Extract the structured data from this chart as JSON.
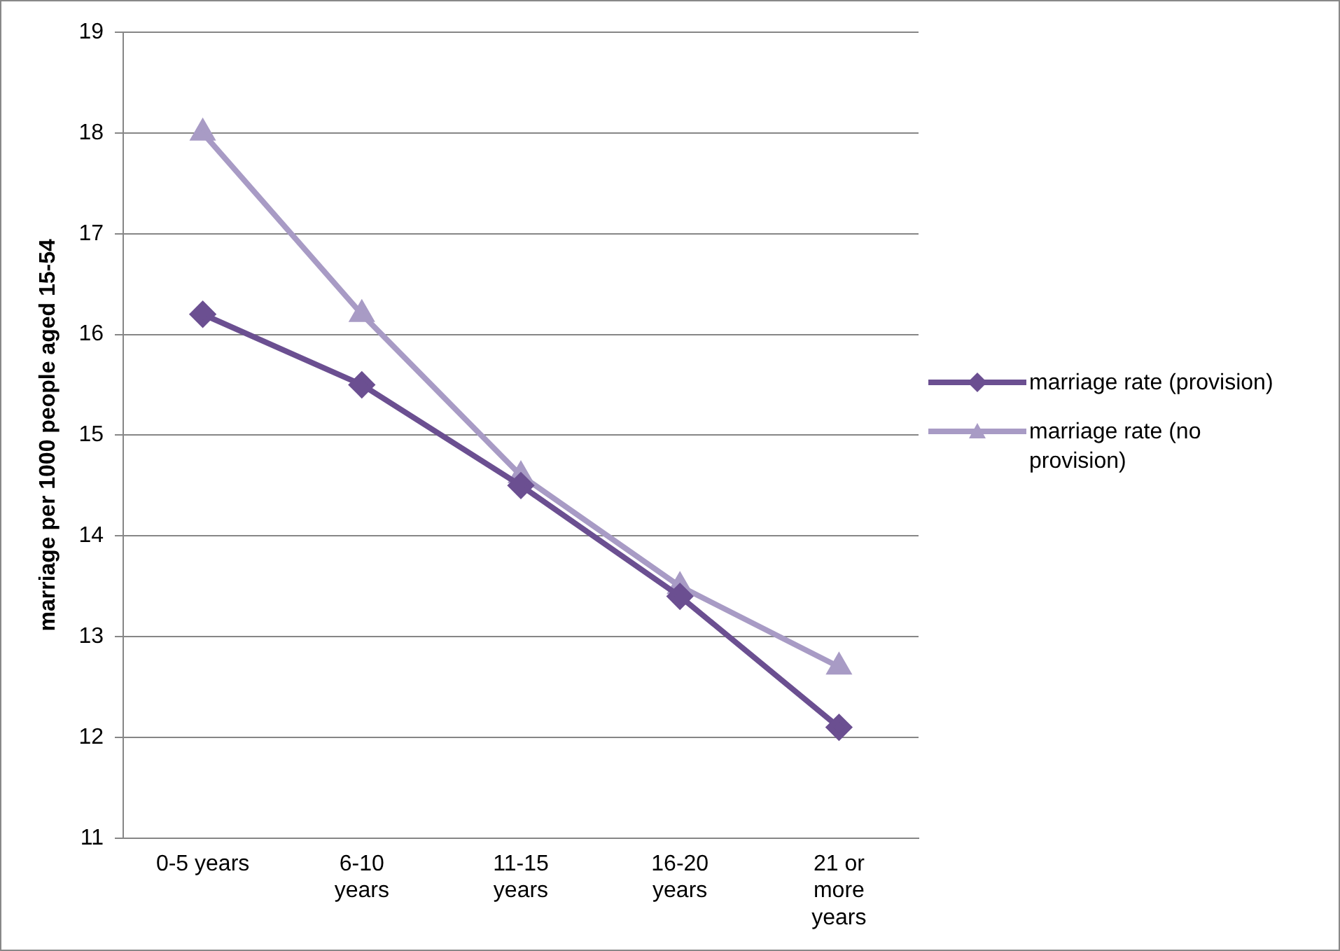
{
  "chart_data": {
    "type": "line",
    "ylabel": "marriage per 1000 people aged 15-54",
    "categories": [
      "0-5 years",
      "6-10 years",
      "11-15 years",
      "16-20 years",
      "21 or more years"
    ],
    "series": [
      {
        "name": "marriage rate (provision)",
        "color": "#6b4f91",
        "marker": "diamond",
        "values": [
          16.2,
          15.5,
          14.5,
          13.4,
          12.1
        ]
      },
      {
        "name": "marriage rate (no provision)",
        "color": "#a89bc5",
        "marker": "triangle",
        "values": [
          18.0,
          16.2,
          14.6,
          13.5,
          12.7
        ]
      }
    ],
    "ylim": [
      11,
      19
    ],
    "yticks": [
      11,
      12,
      13,
      14,
      15,
      16,
      17,
      18,
      19
    ],
    "grid": "y",
    "legend": "right",
    "line_style": "solid"
  }
}
